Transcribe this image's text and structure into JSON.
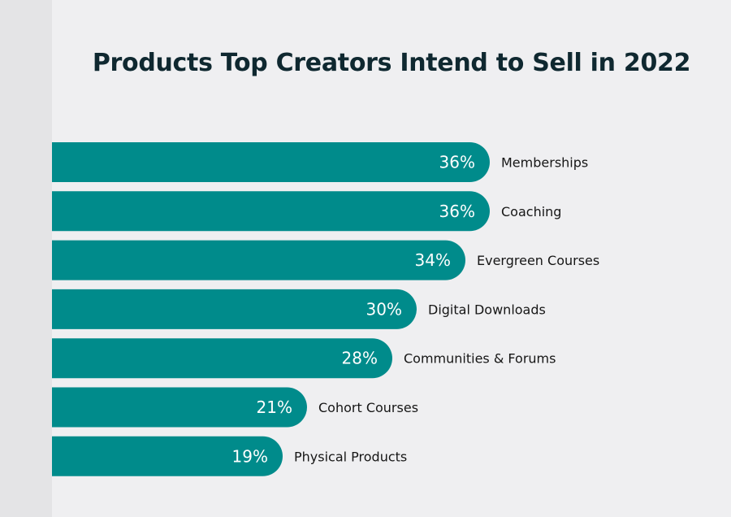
{
  "chart_data": {
    "type": "bar",
    "orientation": "horizontal",
    "title": "Products Top Creators Intend to Sell in 2022",
    "xlabel": "",
    "ylabel": "",
    "categories": [
      "Memberships",
      "Coaching",
      "Evergreen Courses",
      "Digital Downloads",
      "Communities & Forums",
      "Cohort Courses",
      "Physical Products"
    ],
    "values": [
      36,
      36,
      34,
      30,
      28,
      21,
      19
    ],
    "value_labels": [
      "36%",
      "36%",
      "34%",
      "30%",
      "28%",
      "21%",
      "19%"
    ],
    "unit": "%",
    "grid": false,
    "legend": "none",
    "colors": {
      "bar": "#008B8B",
      "background": "#EFEFF1",
      "title": "#0F2830"
    }
  }
}
